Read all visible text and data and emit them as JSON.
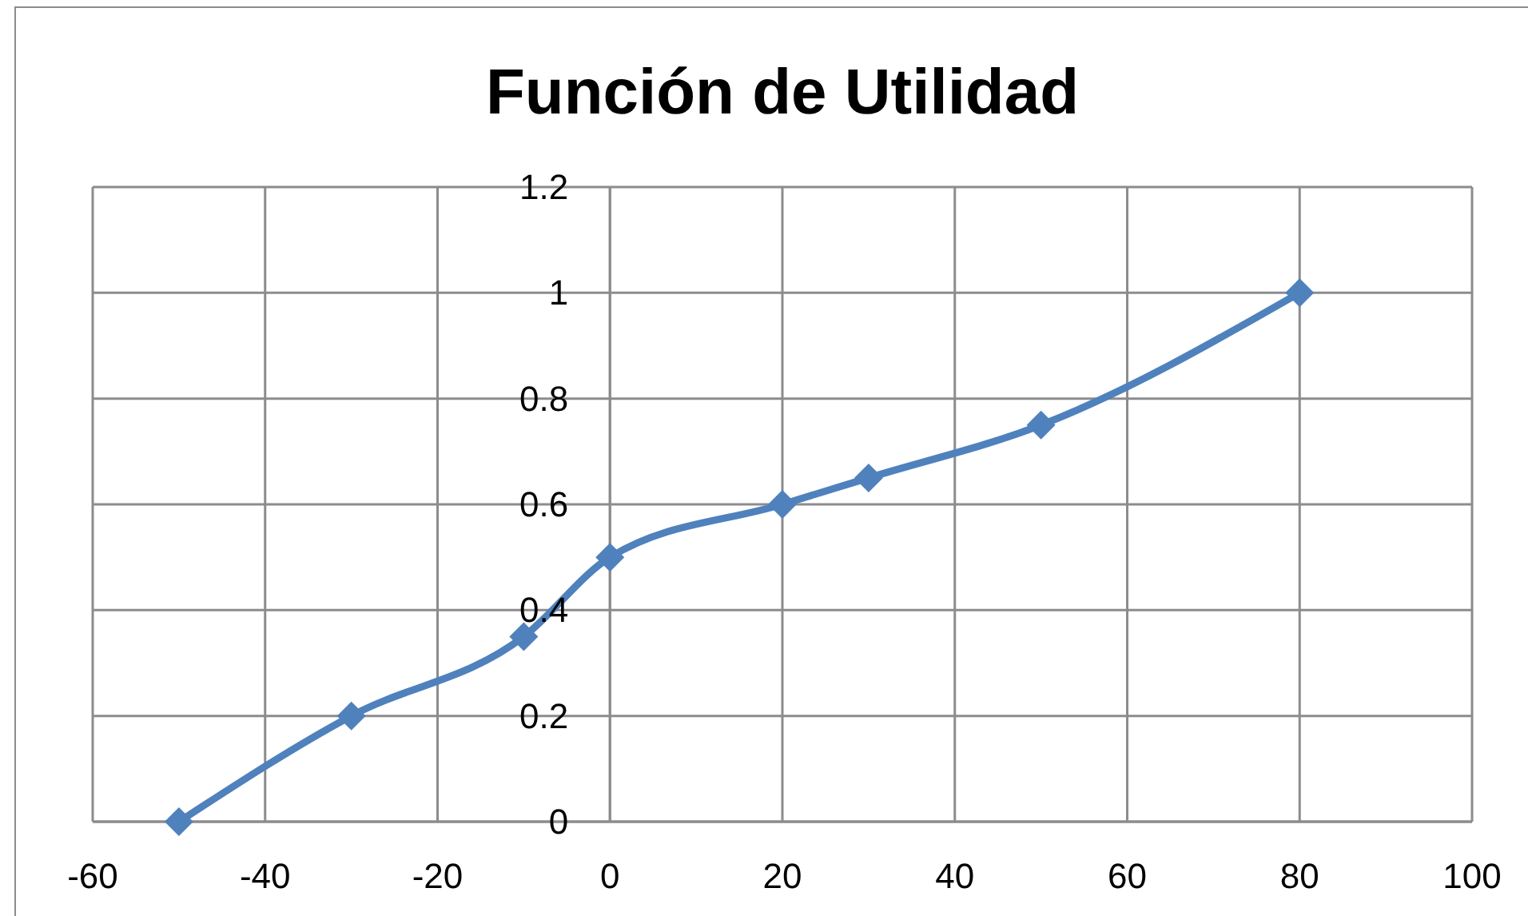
{
  "chart_data": {
    "type": "line",
    "title": "Función de Utilidad",
    "x": [
      -50,
      -30,
      -10,
      0,
      20,
      30,
      50,
      80
    ],
    "series": [
      {
        "color": "#4f81bd",
        "values": [
          0,
          0.2,
          0.35,
          0.5,
          0.6,
          0.65,
          0.75,
          1
        ]
      }
    ],
    "xlim": [
      -60,
      100
    ],
    "xticks": [
      -60,
      -40,
      -20,
      0,
      20,
      40,
      60,
      80,
      100
    ],
    "ylim": [
      0,
      1.2
    ],
    "yticks": [
      0,
      0.2,
      0.4,
      0.6,
      0.8,
      1,
      1.2
    ],
    "grid": true,
    "marker": "diamond",
    "line_style": "solid"
  }
}
